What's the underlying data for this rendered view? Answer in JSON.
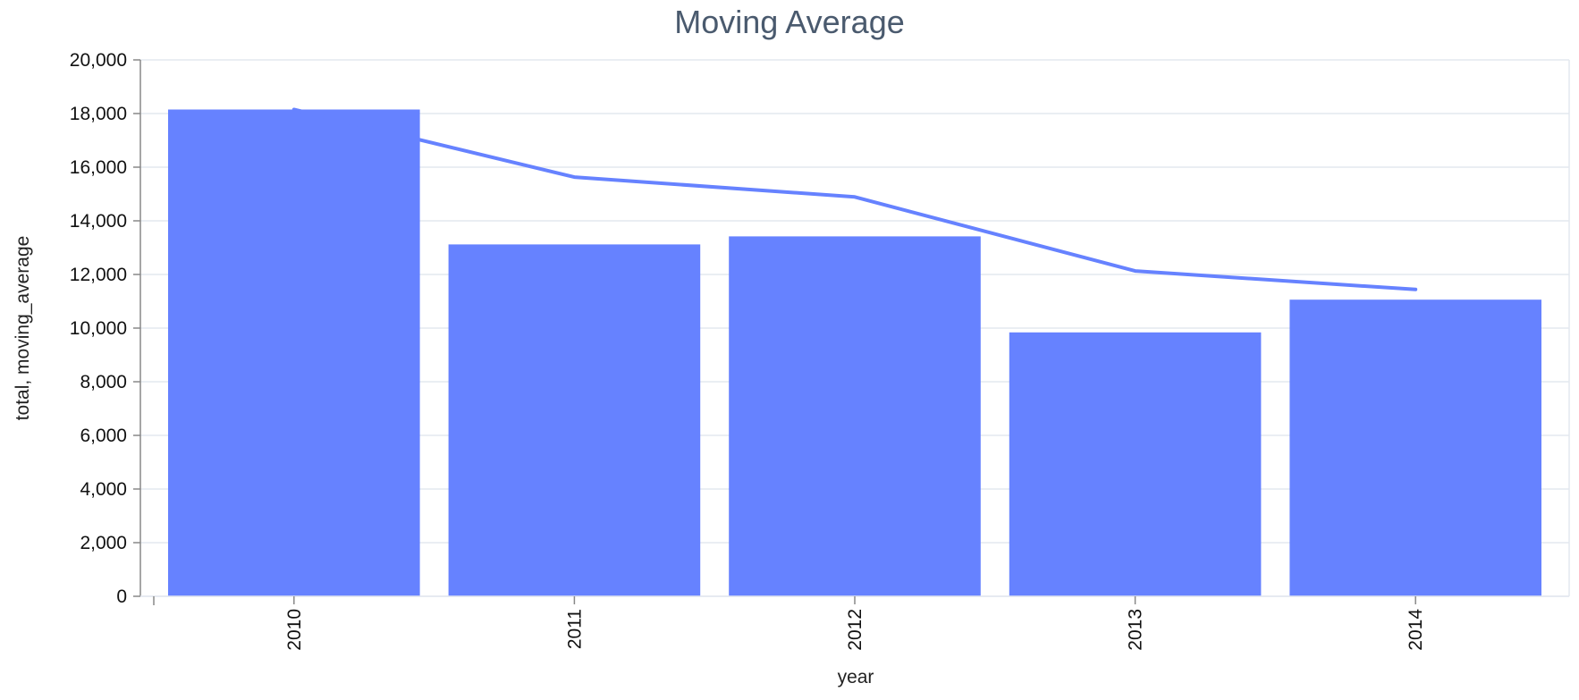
{
  "chart_data": {
    "type": "bar",
    "title": "Moving Average",
    "xlabel": "year",
    "ylabel": "total, moving_average",
    "categories": [
      "2010",
      "2011",
      "2012",
      "2013",
      "2014"
    ],
    "series": [
      {
        "name": "total",
        "type": "bar",
        "values": [
          18150,
          13120,
          13420,
          9840,
          11060
        ]
      },
      {
        "name": "moving_average",
        "type": "line",
        "values": [
          18150,
          15630,
          14890,
          12130,
          11440
        ]
      }
    ],
    "ylim": [
      0,
      20000
    ],
    "yticks": [
      "0",
      "2,000",
      "4,000",
      "6,000",
      "8,000",
      "10,000",
      "12,000",
      "14,000",
      "16,000",
      "18,000",
      "20,000"
    ],
    "grid": true,
    "legend": "none",
    "colors": {
      "bar": "#6682ff",
      "line": "#6682ff",
      "grid": "#e3e8ef",
      "axis": "#888888",
      "title": "#4a5a6e"
    }
  }
}
